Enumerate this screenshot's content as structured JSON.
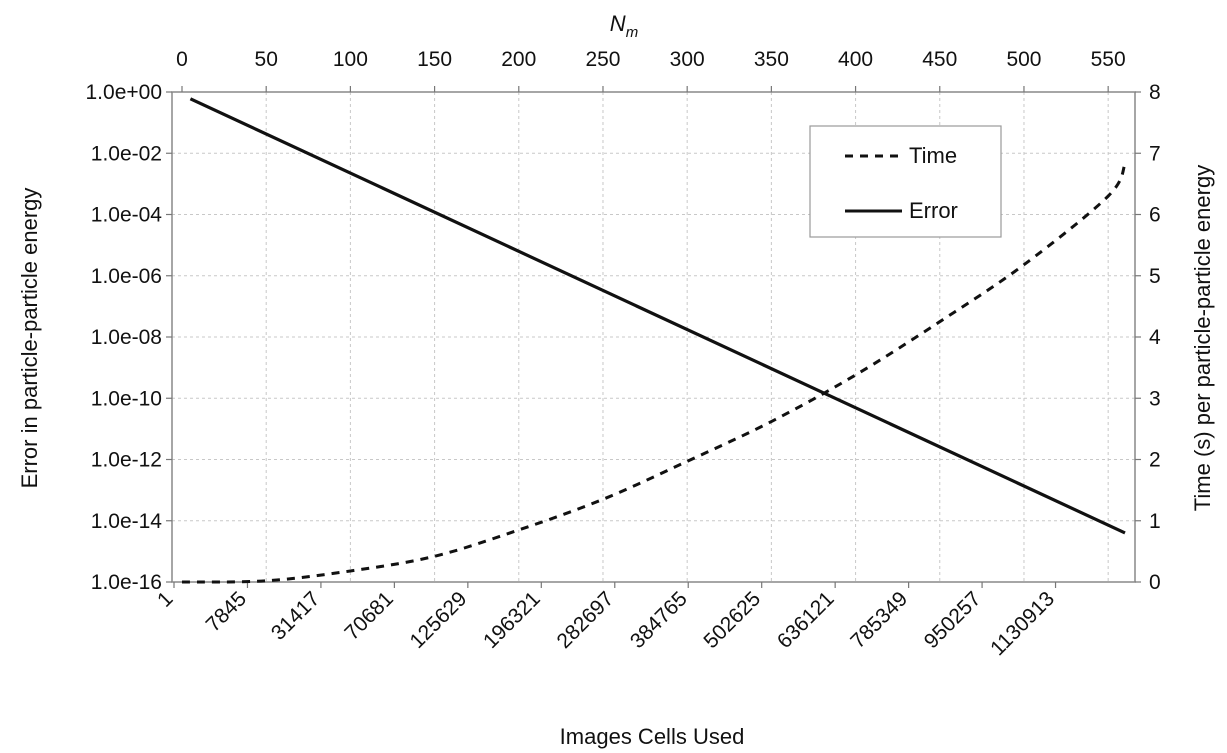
{
  "chart_data": {
    "type": "line",
    "xlabel_top": "N",
    "xlabel_top_sub": "m",
    "xlabel_bottom": "Images Cells Used",
    "ylabel_left": "Error in particle-particle energy",
    "ylabel_right": "Time (s) per particle-particle energy",
    "top_axis": {
      "range": [
        0,
        560
      ],
      "ticks": [
        "0",
        "50",
        "100",
        "150",
        "200",
        "250",
        "300",
        "350",
        "400",
        "450",
        "500",
        "550"
      ]
    },
    "bottom_axis": {
      "ticks": [
        "1",
        "7845",
        "31417",
        "70681",
        "125629",
        "196321",
        "282697",
        "384765",
        "502625",
        "636121",
        "785349",
        "950257",
        "1130913"
      ]
    },
    "left_axis": {
      "scale": "log",
      "range": [
        "1.0e-16",
        "1.0e+00"
      ],
      "ticks": [
        "1.0e+00",
        "1.0e-02",
        "1.0e-04",
        "1.0e-06",
        "1.0e-08",
        "1.0e-10",
        "1.0e-12",
        "1.0e-14",
        "1.0e-16"
      ]
    },
    "right_axis": {
      "range": [
        0,
        8
      ],
      "ticks": [
        "0",
        "1",
        "2",
        "3",
        "4",
        "5",
        "6",
        "7",
        "8"
      ]
    },
    "grid": true,
    "legend": {
      "placement": "top-right",
      "entries": [
        {
          "label": "Time",
          "style": "dashed"
        },
        {
          "label": "Error",
          "style": "solid"
        }
      ]
    },
    "series": [
      {
        "name": "Error",
        "axis": "left",
        "style": "solid",
        "x": [
          5,
          560
        ],
        "y": [
          "6.0e-01",
          "4.0e-15"
        ]
      },
      {
        "name": "Time",
        "axis": "right",
        "style": "dashed",
        "x": [
          0,
          50,
          100,
          150,
          200,
          250,
          300,
          350,
          400,
          450,
          500,
          550,
          560
        ],
        "y": [
          0.0,
          0.02,
          0.18,
          0.42,
          0.85,
          1.35,
          1.97,
          2.62,
          3.38,
          4.25,
          5.18,
          6.3,
          6.82
        ]
      }
    ],
    "colors": {
      "line": "#111111",
      "grid": "#c8c8c8",
      "frame": "#888888"
    }
  }
}
